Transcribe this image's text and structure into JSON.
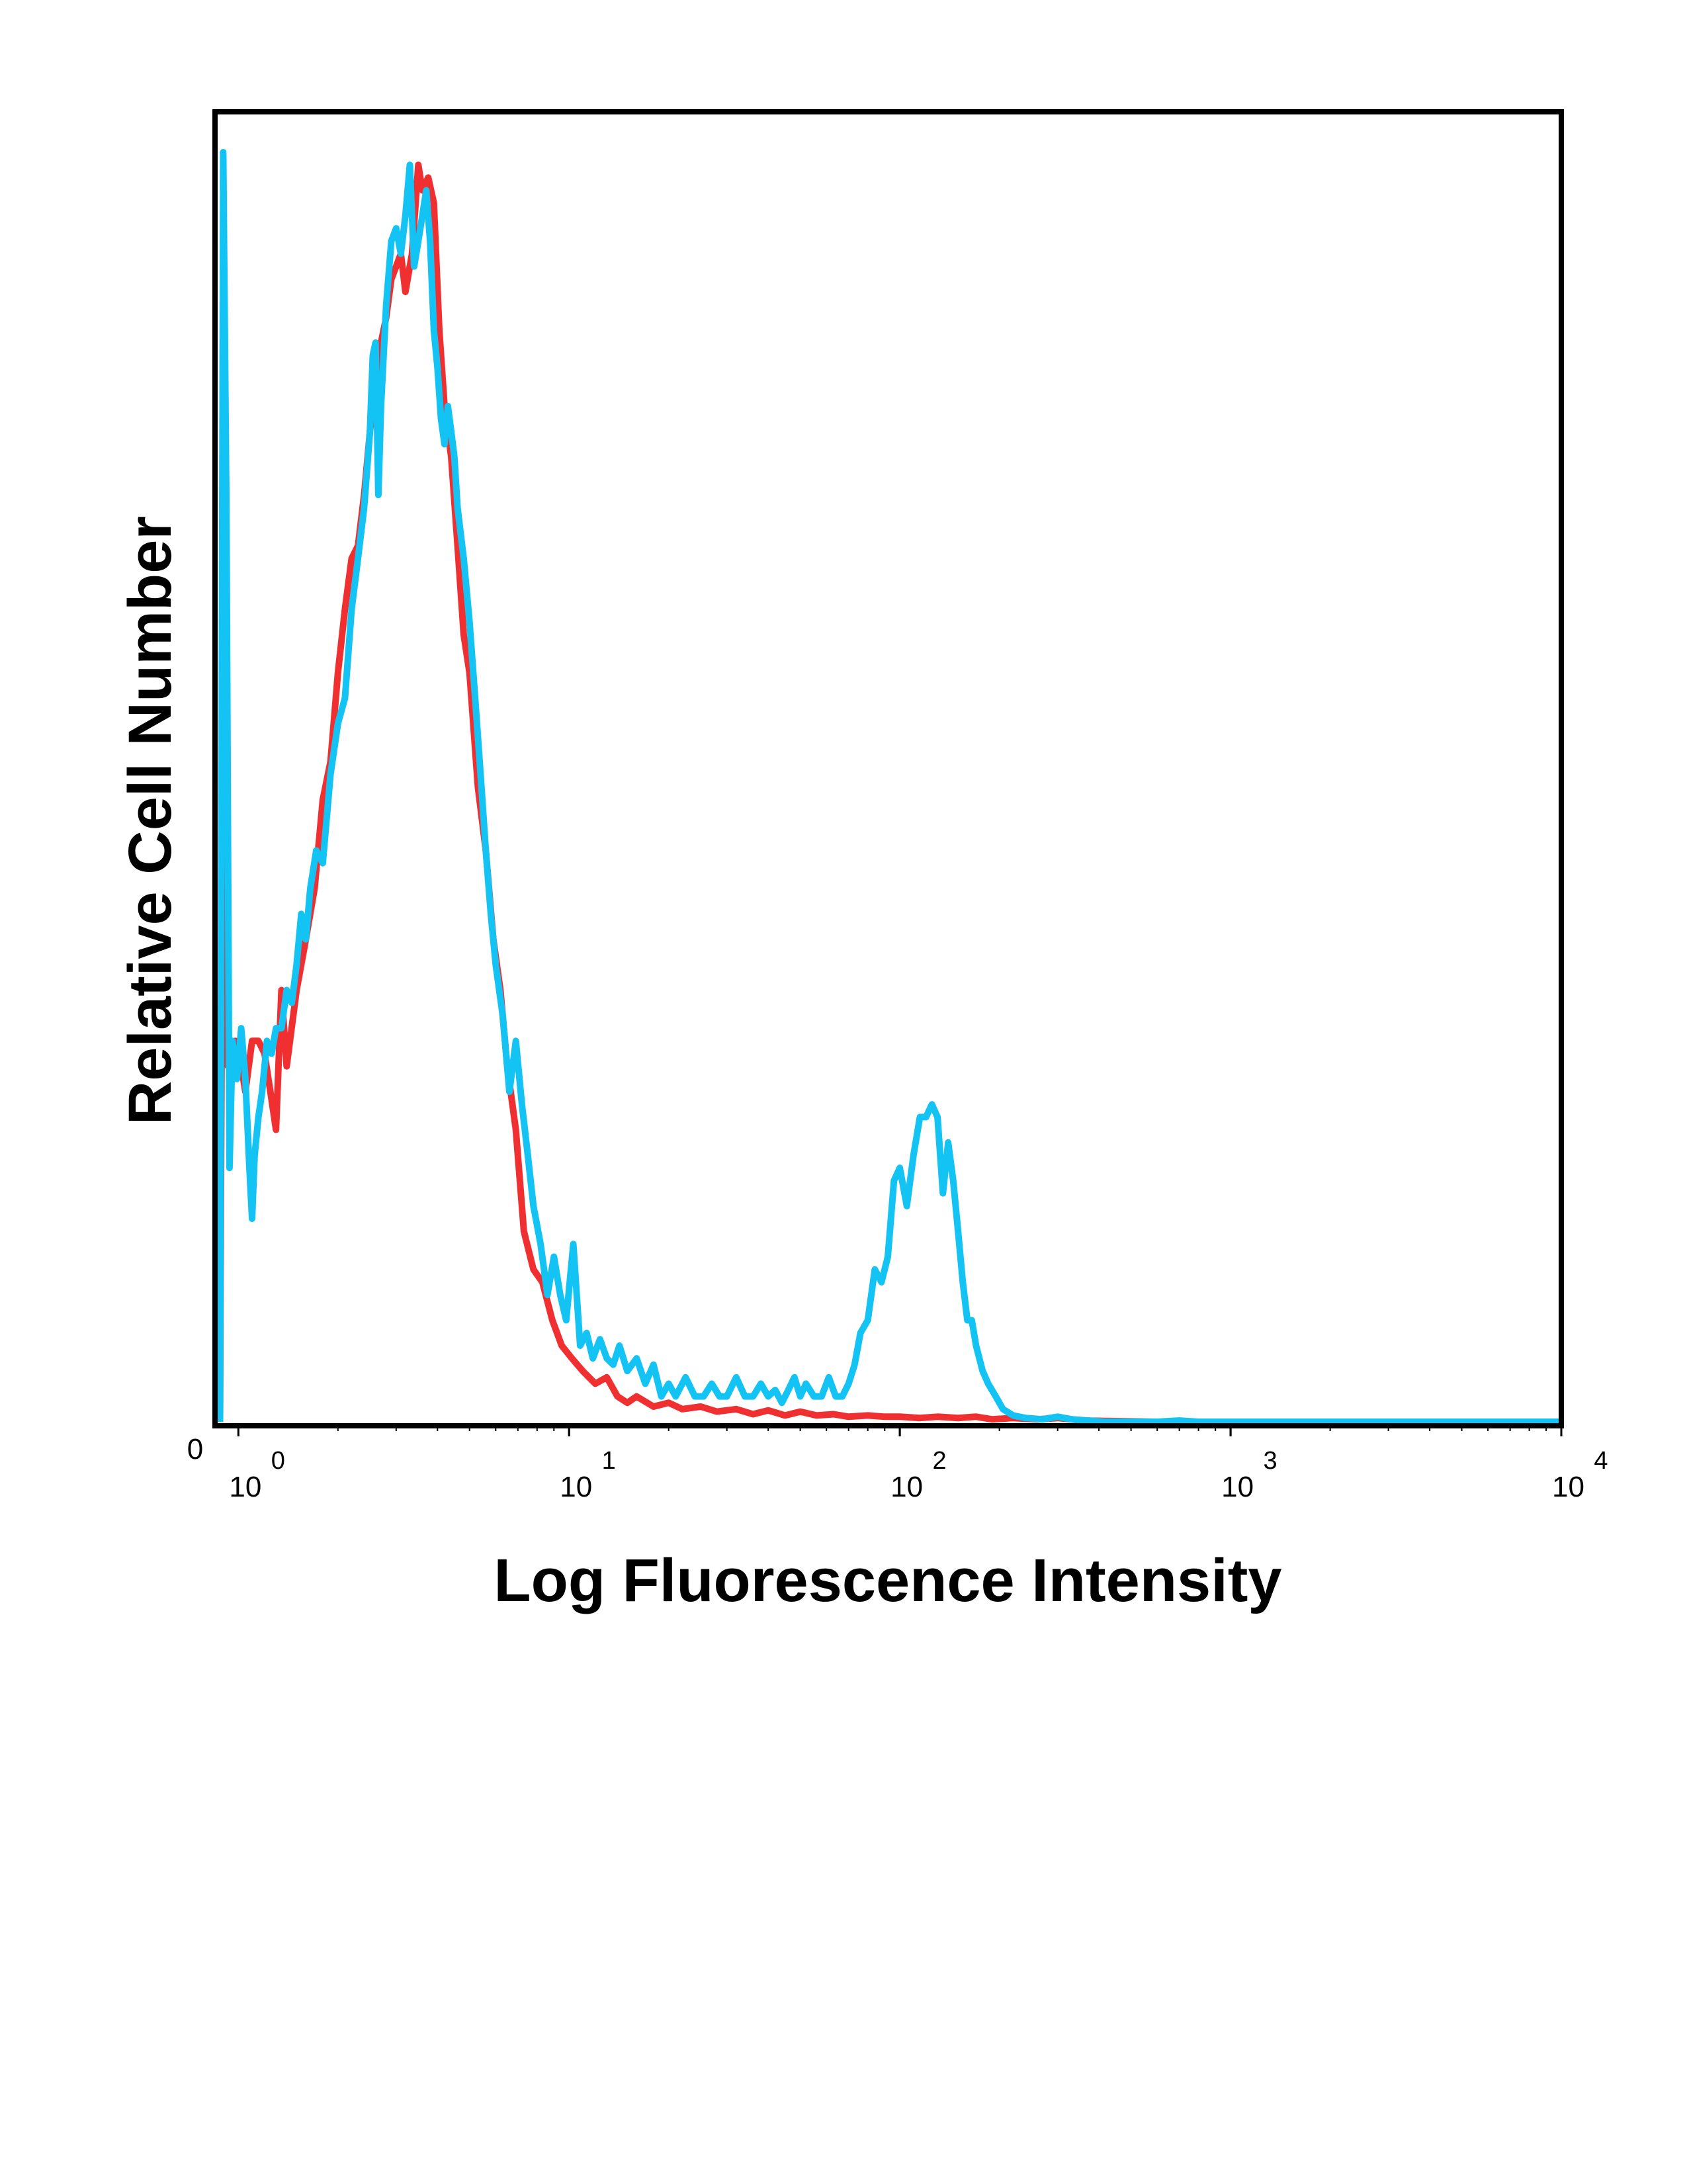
{
  "chart_data": {
    "type": "line",
    "xlabel": "Log Fluorescence Intensity",
    "ylabel": "Relative Cell Number",
    "xscale": "log",
    "xlim": [
      0.85,
      10000
    ],
    "ylim": [
      0,
      100
    ],
    "x_ticks": [
      {
        "base": "10",
        "exp": "0",
        "value": 1
      },
      {
        "base": "10",
        "exp": "1",
        "value": 10
      },
      {
        "base": "10",
        "exp": "2",
        "value": 100
      },
      {
        "base": "10",
        "exp": "3",
        "value": 1000
      },
      {
        "base": "10",
        "exp": "4",
        "value": 10000
      }
    ],
    "y_tick_label": "0",
    "grid": false,
    "legend": "none",
    "series": [
      {
        "color": "#f03030",
        "points": [
          [
            0.88,
            0
          ],
          [
            0.9,
            60
          ],
          [
            0.93,
            28
          ],
          [
            0.98,
            30
          ],
          [
            1.02,
            28
          ],
          [
            1.05,
            26
          ],
          [
            1.1,
            30
          ],
          [
            1.15,
            30
          ],
          [
            1.2,
            29
          ],
          [
            1.25,
            26
          ],
          [
            1.3,
            23
          ],
          [
            1.35,
            34
          ],
          [
            1.4,
            28
          ],
          [
            1.5,
            34
          ],
          [
            1.6,
            38
          ],
          [
            1.7,
            42
          ],
          [
            1.8,
            49
          ],
          [
            1.9,
            52
          ],
          [
            2.0,
            59
          ],
          [
            2.1,
            64
          ],
          [
            2.2,
            68
          ],
          [
            2.3,
            69
          ],
          [
            2.4,
            73
          ],
          [
            2.5,
            78
          ],
          [
            2.6,
            82
          ],
          [
            2.7,
            85
          ],
          [
            2.8,
            87
          ],
          [
            2.9,
            90
          ],
          [
            3.0,
            91
          ],
          [
            3.1,
            92
          ],
          [
            3.2,
            89
          ],
          [
            3.35,
            92
          ],
          [
            3.5,
            99
          ],
          [
            3.6,
            97
          ],
          [
            3.75,
            98
          ],
          [
            3.9,
            96
          ],
          [
            4.05,
            86
          ],
          [
            4.2,
            80
          ],
          [
            4.4,
            76
          ],
          [
            4.6,
            69
          ],
          [
            4.8,
            62
          ],
          [
            5.0,
            59
          ],
          [
            5.3,
            50
          ],
          [
            5.6,
            45
          ],
          [
            5.9,
            38
          ],
          [
            6.2,
            34
          ],
          [
            6.5,
            28
          ],
          [
            6.9,
            23
          ],
          [
            7.3,
            15
          ],
          [
            7.8,
            12
          ],
          [
            8.3,
            11
          ],
          [
            8.9,
            8
          ],
          [
            9.5,
            6
          ],
          [
            10.2,
            5
          ],
          [
            11,
            4
          ],
          [
            12,
            3
          ],
          [
            13,
            3.5
          ],
          [
            14,
            2
          ],
          [
            15,
            1.5
          ],
          [
            16,
            2
          ],
          [
            18,
            1.2
          ],
          [
            20,
            1.5
          ],
          [
            22,
            1
          ],
          [
            25,
            1.2
          ],
          [
            28,
            0.8
          ],
          [
            32,
            1
          ],
          [
            36,
            0.6
          ],
          [
            40,
            0.9
          ],
          [
            45,
            0.5
          ],
          [
            50,
            0.8
          ],
          [
            56,
            0.5
          ],
          [
            63,
            0.6
          ],
          [
            70,
            0.4
          ],
          [
            80,
            0.5
          ],
          [
            90,
            0.4
          ],
          [
            100,
            0.4
          ],
          [
            115,
            0.3
          ],
          [
            130,
            0.4
          ],
          [
            150,
            0.3
          ],
          [
            170,
            0.4
          ],
          [
            190,
            0.2
          ],
          [
            220,
            0.3
          ],
          [
            260,
            0.2
          ],
          [
            300,
            0.3
          ],
          [
            360,
            0.1
          ],
          [
            450,
            0.05
          ],
          [
            600,
            0
          ],
          [
            1000,
            0
          ],
          [
            3000,
            0
          ],
          [
            10000,
            0
          ]
        ]
      },
      {
        "color": "#12c3f4",
        "points": [
          [
            0.88,
            0
          ],
          [
            0.9,
            100
          ],
          [
            0.92,
            72
          ],
          [
            0.94,
            20
          ],
          [
            0.96,
            30
          ],
          [
            0.99,
            27
          ],
          [
            1.02,
            31
          ],
          [
            1.05,
            27
          ],
          [
            1.08,
            20
          ],
          [
            1.1,
            16
          ],
          [
            1.12,
            21
          ],
          [
            1.15,
            24
          ],
          [
            1.18,
            26
          ],
          [
            1.22,
            30
          ],
          [
            1.26,
            29
          ],
          [
            1.3,
            31
          ],
          [
            1.35,
            31
          ],
          [
            1.4,
            34
          ],
          [
            1.45,
            33
          ],
          [
            1.5,
            36
          ],
          [
            1.55,
            40
          ],
          [
            1.6,
            38
          ],
          [
            1.65,
            42
          ],
          [
            1.72,
            45
          ],
          [
            1.8,
            44
          ],
          [
            1.9,
            51
          ],
          [
            2.0,
            55
          ],
          [
            2.1,
            57
          ],
          [
            2.2,
            64
          ],
          [
            2.3,
            68
          ],
          [
            2.4,
            72
          ],
          [
            2.5,
            78
          ],
          [
            2.55,
            84
          ],
          [
            2.6,
            85
          ],
          [
            2.65,
            73
          ],
          [
            2.7,
            80
          ],
          [
            2.8,
            88
          ],
          [
            2.9,
            93
          ],
          [
            3.0,
            94
          ],
          [
            3.1,
            92
          ],
          [
            3.2,
            95
          ],
          [
            3.3,
            99
          ],
          [
            3.4,
            91
          ],
          [
            3.5,
            93
          ],
          [
            3.6,
            95
          ],
          [
            3.7,
            97
          ],
          [
            3.8,
            93
          ],
          [
            3.9,
            86
          ],
          [
            4.0,
            83
          ],
          [
            4.1,
            79
          ],
          [
            4.2,
            77
          ],
          [
            4.3,
            80
          ],
          [
            4.4,
            78
          ],
          [
            4.5,
            76
          ],
          [
            4.6,
            72
          ],
          [
            4.8,
            68
          ],
          [
            5.0,
            63
          ],
          [
            5.2,
            57
          ],
          [
            5.4,
            51
          ],
          [
            5.6,
            45
          ],
          [
            5.8,
            40
          ],
          [
            6.0,
            36
          ],
          [
            6.3,
            32
          ],
          [
            6.6,
            26
          ],
          [
            6.9,
            30
          ],
          [
            7.2,
            25
          ],
          [
            7.5,
            21
          ],
          [
            7.8,
            17
          ],
          [
            8.2,
            14
          ],
          [
            8.6,
            10
          ],
          [
            9.0,
            13
          ],
          [
            9.4,
            10
          ],
          [
            9.8,
            8
          ],
          [
            10.3,
            14
          ],
          [
            10.8,
            6
          ],
          [
            11.3,
            7
          ],
          [
            11.8,
            5
          ],
          [
            12.4,
            6.5
          ],
          [
            13,
            5
          ],
          [
            13.6,
            4.5
          ],
          [
            14.2,
            6
          ],
          [
            15,
            4
          ],
          [
            16,
            5
          ],
          [
            17,
            3
          ],
          [
            18,
            4.5
          ],
          [
            19,
            2
          ],
          [
            20,
            3
          ],
          [
            21,
            2
          ],
          [
            22.5,
            3.5
          ],
          [
            24,
            2
          ],
          [
            25.5,
            2
          ],
          [
            27,
            3
          ],
          [
            28.5,
            2
          ],
          [
            30,
            2
          ],
          [
            32,
            3.5
          ],
          [
            34,
            2
          ],
          [
            36,
            2
          ],
          [
            38,
            3
          ],
          [
            40,
            2
          ],
          [
            42,
            2.5
          ],
          [
            44,
            1.5
          ],
          [
            46,
            2.5
          ],
          [
            48,
            3.5
          ],
          [
            50,
            2
          ],
          [
            52,
            3
          ],
          [
            55,
            2
          ],
          [
            58,
            2
          ],
          [
            61,
            3.5
          ],
          [
            64,
            2
          ],
          [
            67,
            2
          ],
          [
            70,
            3
          ],
          [
            73,
            4.5
          ],
          [
            76,
            7
          ],
          [
            80,
            8
          ],
          [
            84,
            12
          ],
          [
            88,
            11
          ],
          [
            92,
            13
          ],
          [
            96,
            19
          ],
          [
            100,
            20
          ],
          [
            105,
            17
          ],
          [
            110,
            21
          ],
          [
            115,
            24
          ],
          [
            120,
            24
          ],
          [
            125,
            25
          ],
          [
            130,
            24
          ],
          [
            135,
            18
          ],
          [
            140,
            22
          ],
          [
            145,
            19
          ],
          [
            150,
            15
          ],
          [
            155,
            11
          ],
          [
            160,
            8
          ],
          [
            165,
            8
          ],
          [
            170,
            6
          ],
          [
            178,
            4
          ],
          [
            185,
            3
          ],
          [
            195,
            2
          ],
          [
            205,
            1
          ],
          [
            220,
            0.5
          ],
          [
            240,
            0.3
          ],
          [
            270,
            0.2
          ],
          [
            300,
            0.4
          ],
          [
            330,
            0.2
          ],
          [
            370,
            0.1
          ],
          [
            420,
            0
          ],
          [
            600,
            0
          ],
          [
            700,
            0.1
          ],
          [
            800,
            0
          ],
          [
            1000,
            0
          ],
          [
            3000,
            0
          ],
          [
            10000,
            0
          ]
        ]
      }
    ]
  }
}
